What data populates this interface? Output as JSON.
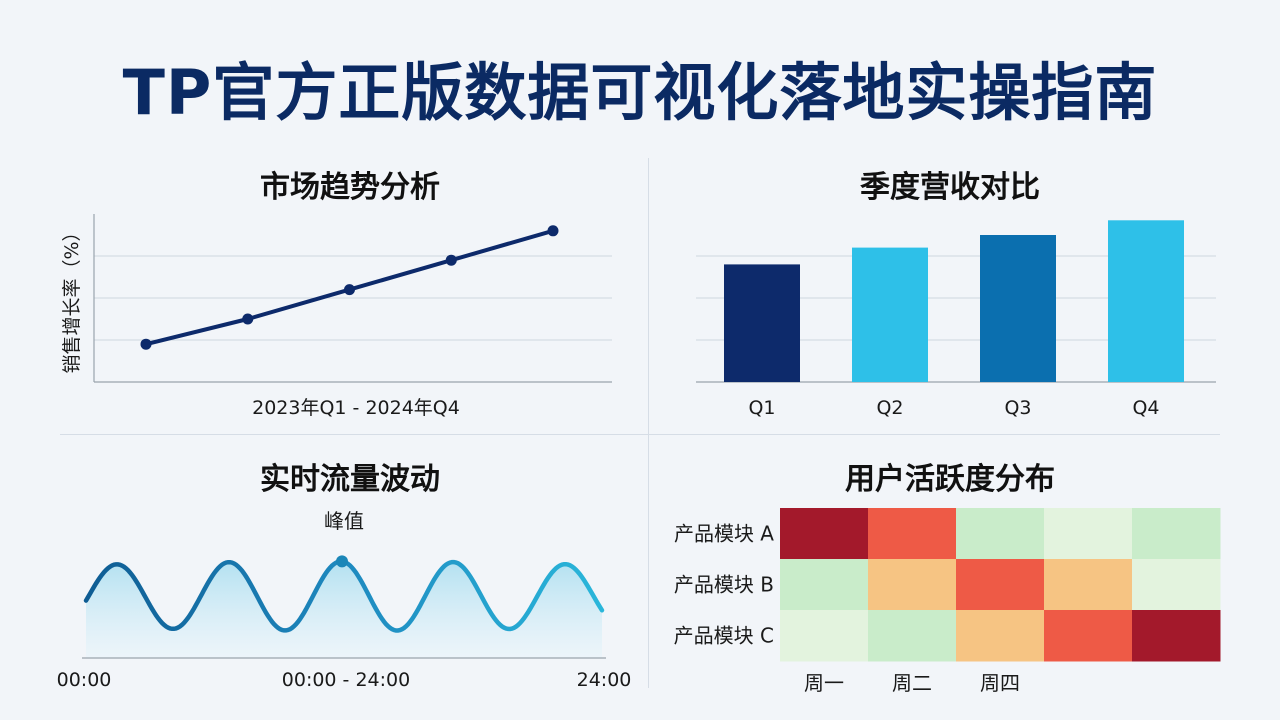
{
  "title": "TP官方正版数据可视化落地实操指南",
  "colors": {
    "navy": "#0d2a6b",
    "lightblue": "#2ec0e8",
    "midblue": "#0b6faf",
    "hot": "#a3192b",
    "warm": "#ee5a46",
    "orange": "#f6c483",
    "pale": "#c9ecca",
    "palest": "#e3f3de"
  },
  "chart_data": [
    {
      "type": "line",
      "title": "市场趋势分析",
      "ylabel": "销售增长率（%）",
      "xlabel": "2023年Q1 - 2024年Q4",
      "ylim": [
        0,
        4
      ],
      "values": [
        0.9,
        1.5,
        2.2,
        2.9,
        3.6
      ],
      "grid": true
    },
    {
      "type": "bar",
      "title": "季度营收对比",
      "categories": [
        "Q1",
        "Q2",
        "Q3",
        "Q4"
      ],
      "values": [
        2.8,
        3.2,
        3.5,
        3.85
      ],
      "ylim": [
        0,
        4
      ],
      "bar_colors": [
        "#0d2a6b",
        "#2ec0e8",
        "#0b6faf",
        "#2ec0e8"
      ],
      "grid": true
    },
    {
      "type": "area",
      "title": "实时流量波动",
      "annotation": "峰值",
      "x_start": "00:00",
      "x_mid": "00:00 - 24:00",
      "x_end": "24:00",
      "cycles": 4.6,
      "amplitude": 1,
      "peak_cycle": 2
    },
    {
      "type": "heatmap",
      "title": "用户活跃度分布",
      "rows": [
        "产品模块 A",
        "产品模块 B",
        "产品模块 C"
      ],
      "columns": [
        "周一",
        "周二",
        "周四",
        "",
        ""
      ],
      "levels": [
        [
          4,
          3,
          1,
          0,
          1
        ],
        [
          1,
          2,
          3,
          2,
          0
        ],
        [
          0,
          1,
          2,
          3,
          4
        ]
      ]
    }
  ]
}
